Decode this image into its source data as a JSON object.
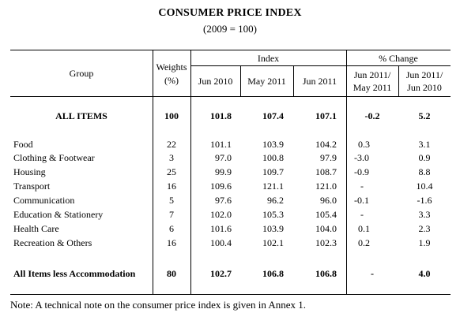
{
  "title": "CONSUMER PRICE INDEX",
  "subtitle": "(2009 = 100)",
  "header": {
    "group": "Group",
    "weights_line1": "Weights",
    "weights_line2": "(%)",
    "index": "Index",
    "pct_change": "% Change",
    "col_jun2010": "Jun 2010",
    "col_may2011": "May 2011",
    "col_jun2011": "Jun 2011",
    "chg1_line1": "Jun 2011/",
    "chg1_line2": "May 2011",
    "chg2_line1": "Jun 2011/",
    "chg2_line2": "Jun 2010"
  },
  "all_items": {
    "label": "ALL ITEMS",
    "weight": "100",
    "jun2010": "101.8",
    "may2011": "107.4",
    "jun2011": "107.1",
    "chg_month": "-0.2",
    "chg_year": "5.2"
  },
  "rows": [
    {
      "label": "Food",
      "weight": "22",
      "jun2010": "101.1",
      "may2011": "103.9",
      "jun2011": "104.2",
      "chg_month": "0.3",
      "chg_year": "3.1"
    },
    {
      "label": "Clothing & Footwear",
      "weight": "3",
      "jun2010": "97.0",
      "may2011": "100.8",
      "jun2011": "97.9",
      "chg_month": "-3.0",
      "chg_year": "0.9"
    },
    {
      "label": "Housing",
      "weight": "25",
      "jun2010": "99.9",
      "may2011": "109.7",
      "jun2011": "108.7",
      "chg_month": "-0.9",
      "chg_year": "8.8"
    },
    {
      "label": "Transport",
      "weight": "16",
      "jun2010": "109.6",
      "may2011": "121.1",
      "jun2011": "121.0",
      "chg_month": "-",
      "chg_year": "10.4"
    },
    {
      "label": "Communication",
      "weight": "5",
      "jun2010": "97.6",
      "may2011": "96.2",
      "jun2011": "96.0",
      "chg_month": "-0.1",
      "chg_year": "-1.6"
    },
    {
      "label": "Education & Stationery",
      "weight": "7",
      "jun2010": "102.0",
      "may2011": "105.3",
      "jun2011": "105.4",
      "chg_month": "-",
      "chg_year": "3.3"
    },
    {
      "label": "Health Care",
      "weight": "6",
      "jun2010": "101.6",
      "may2011": "103.9",
      "jun2011": "104.0",
      "chg_month": "0.1",
      "chg_year": "2.3"
    },
    {
      "label": "Recreation & Others",
      "weight": "16",
      "jun2010": "100.4",
      "may2011": "102.1",
      "jun2011": "102.3",
      "chg_month": "0.2",
      "chg_year": "1.9"
    }
  ],
  "less_accommodation": {
    "label": "All Items less Accommodation",
    "weight": "80",
    "jun2010": "102.7",
    "may2011": "106.8",
    "jun2011": "106.8",
    "chg_month": "-",
    "chg_year": "4.0"
  },
  "note": "Note: A technical note on the consumer price index is given in Annex 1."
}
